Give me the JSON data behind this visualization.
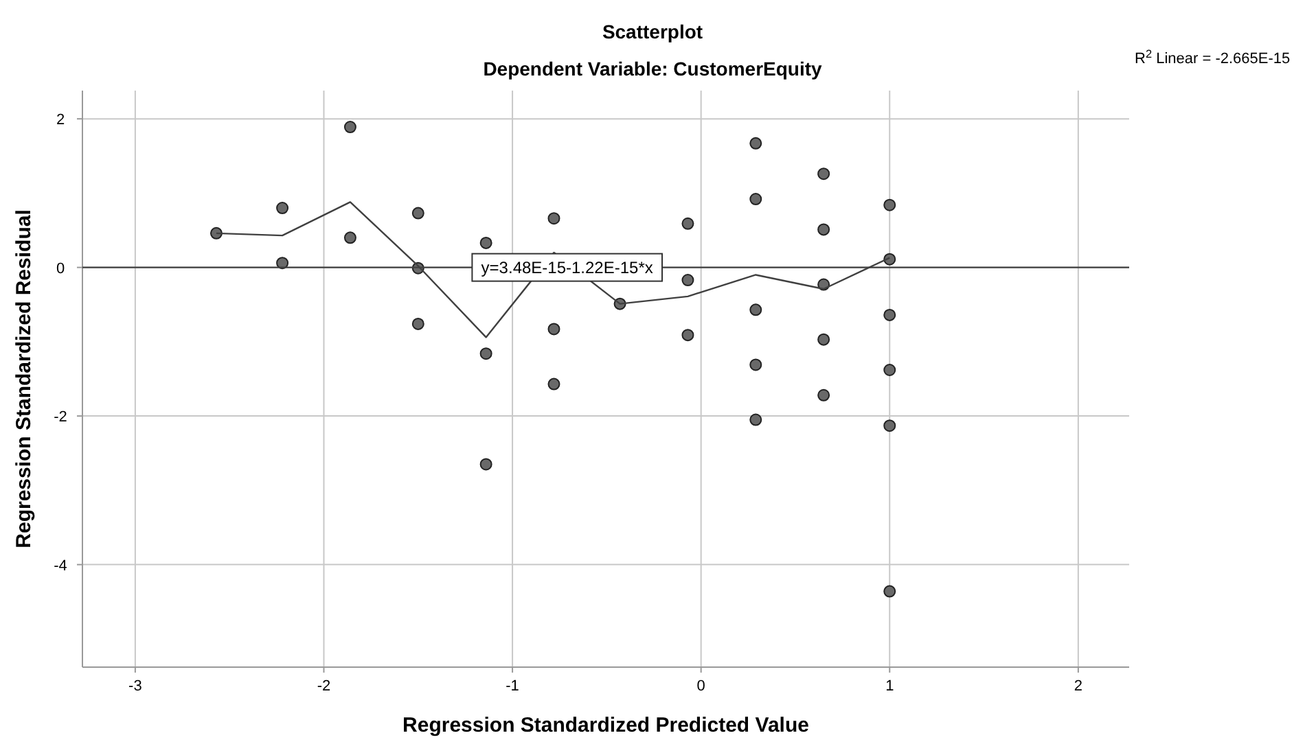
{
  "chart_data": {
    "type": "scatter",
    "title": "Scatterplot",
    "subtitle": "Dependent Variable: CustomerEquity",
    "xlabel": "Regression Standardized Predicted Value",
    "ylabel": "Regression Standardized Residual",
    "xlim": [
      -3.28,
      2.27
    ],
    "ylim": [
      -5.38,
      2.38
    ],
    "xticks": [
      -3,
      -2,
      -1,
      0,
      1,
      2
    ],
    "yticks": [
      2,
      0,
      -2,
      -4
    ],
    "grid": true,
    "marker": "circle",
    "series": [
      {
        "color": "#696969",
        "x": [
          -2.57,
          -2.22,
          -2.22,
          -1.86,
          -1.86,
          -1.5,
          -1.5,
          -1.5,
          -1.14,
          -1.14,
          -1.14,
          -0.78,
          -0.78,
          -0.78,
          -0.43,
          -0.07,
          -0.07,
          -0.07,
          0.29,
          0.29,
          0.29,
          0.29,
          0.29,
          0.65,
          0.65,
          0.65,
          0.65,
          0.65,
          1.0,
          1.0,
          1.0,
          1.0,
          1.0,
          1.0
        ],
        "values": [
          0.46,
          0.8,
          0.06,
          1.89,
          0.4,
          0.73,
          -0.01,
          -0.76,
          0.33,
          -1.16,
          -2.65,
          0.66,
          -0.83,
          -1.57,
          -0.49,
          0.59,
          -0.17,
          -0.91,
          1.67,
          0.92,
          -0.57,
          -1.31,
          -2.05,
          1.26,
          0.51,
          -0.23,
          -0.97,
          -1.72,
          0.84,
          0.11,
          -0.64,
          -1.38,
          -2.13,
          -4.36
        ]
      },
      {
        "type": "line",
        "color": "#404040",
        "marker": "none",
        "line_style": "solid",
        "x": [
          -2.57,
          -2.22,
          -1.86,
          -1.5,
          -1.14,
          -0.78,
          -0.43,
          -0.07,
          0.29,
          0.65,
          1.0
        ],
        "values": [
          0.46,
          0.43,
          0.88,
          0.02,
          -0.94,
          0.2,
          -0.49,
          -0.39,
          -0.1,
          -0.29,
          0.13
        ]
      },
      {
        "type": "line",
        "color": "#404040",
        "marker": "none",
        "line_style": "solid",
        "x": [
          -3.28,
          2.27
        ],
        "values": [
          0,
          0
        ]
      }
    ],
    "annotations": [
      {
        "text": "y=3.48E-15-1.22E-15*x",
        "x": -0.71,
        "y": 0
      },
      "R$^{2}$ Linear = -2.665E-15"
    ]
  }
}
